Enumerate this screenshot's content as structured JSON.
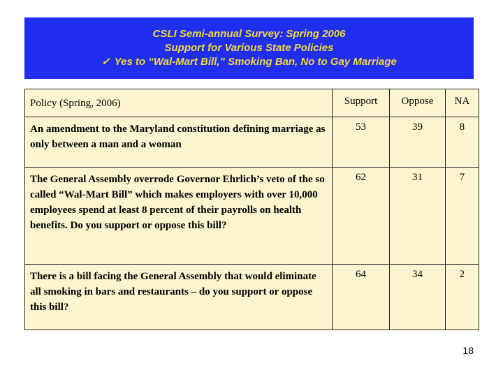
{
  "banner": {
    "line1": "CSLI Semi-annual Survey: Spring 2006",
    "line2": "Support for Various State Policies",
    "check_icon": "✓",
    "line3": "Yes to “Wal-Mart Bill,” Smoking Ban, No to Gay Marriage"
  },
  "colors": {
    "banner_bg": "#1f2ef0",
    "banner_text": "#f2d93a",
    "table_bg": "#fdf5cf"
  },
  "table": {
    "headers": {
      "policy": "Policy (Spring, 2006)",
      "support": "Support",
      "oppose": "Oppose",
      "na": "NA"
    },
    "rows": [
      {
        "policy": "An amendment to the Maryland constitution defining marriage as only between a man and a woman",
        "support": "53",
        "oppose": "39",
        "na": "8"
      },
      {
        "policy": "The General Assembly overrode Governor Ehrlich’s veto of the so called “Wal-Mart Bill” which makes employers with over 10,000 employees spend at least 8 percent of their payrolls on health benefits.  Do you support or oppose this bill?",
        "support": "62",
        "oppose": "31",
        "na": "7"
      },
      {
        "policy": "There is a bill facing the General Assembly that would eliminate all smoking in bars and restaurants – do you support or oppose this bill?",
        "support": "64",
        "oppose": "34",
        "na": "2"
      }
    ]
  },
  "page_number": "18"
}
